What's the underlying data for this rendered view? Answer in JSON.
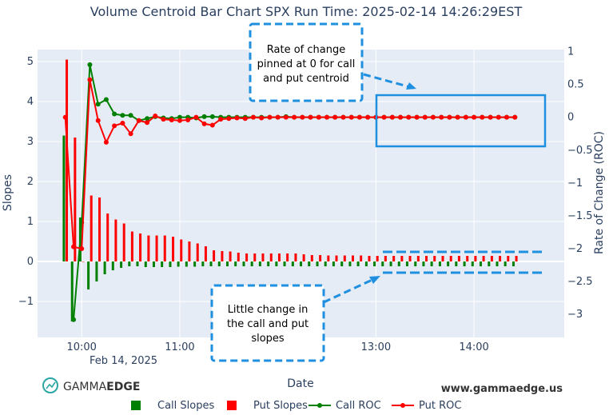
{
  "chart_data": {
    "type": "bar",
    "title": "Volume Centroid Bar Chart SPX Run Time: 2025-02-14 14:26:29EST",
    "xlabel": "Date",
    "ylabel": "Slopes",
    "y2label": "Rate of Change (ROC)",
    "x_ticks": [
      "10:00",
      "11:00",
      "13:00",
      "14:00"
    ],
    "x_tick_values": [
      10.0,
      11.0,
      13.0,
      14.0
    ],
    "x_date_label": "Feb 14, 2025",
    "xlim": [
      9.55,
      14.92
    ],
    "ylim": [
      -1.9,
      5.3
    ],
    "y2lim": [
      -3.35,
      1.03
    ],
    "y_ticks": [
      "5",
      "4",
      "3",
      "2",
      "1",
      "0",
      "−1"
    ],
    "y_tick_values": [
      5,
      4,
      3,
      2,
      1,
      0,
      -1
    ],
    "y2_ticks": [
      "1",
      "0.5",
      "0",
      "−0.5",
      "−1",
      "−1.5",
      "−2",
      "−2.5",
      "−3"
    ],
    "y2_tick_values": [
      1,
      0.5,
      0,
      -0.5,
      -1,
      -1.5,
      -2,
      -2.5,
      -3
    ],
    "x": [
      9.833,
      9.917,
      10.0,
      10.083,
      10.167,
      10.25,
      10.333,
      10.417,
      10.5,
      10.583,
      10.667,
      10.75,
      10.833,
      10.917,
      11.0,
      11.083,
      11.167,
      11.25,
      11.333,
      11.417,
      11.5,
      11.583,
      11.667,
      11.75,
      11.833,
      11.917,
      12.0,
      12.083,
      12.167,
      12.25,
      12.333,
      12.417,
      12.5,
      12.583,
      12.667,
      12.75,
      12.833,
      12.917,
      13.0,
      13.083,
      13.167,
      13.25,
      13.333,
      13.417,
      13.5,
      13.583,
      13.667,
      13.75,
      13.833,
      13.917,
      14.0,
      14.083,
      14.167,
      14.25,
      14.333,
      14.417
    ],
    "series": [
      {
        "name": "Call Slopes",
        "color": "#008000",
        "kind": "bar",
        "values": [
          3.15,
          -1.5,
          1.1,
          -0.7,
          -0.5,
          -0.32,
          -0.22,
          -0.16,
          -0.12,
          -0.12,
          -0.14,
          -0.14,
          -0.14,
          -0.14,
          -0.13,
          -0.13,
          -0.13,
          -0.12,
          -0.12,
          -0.12,
          -0.12,
          -0.12,
          -0.12,
          -0.12,
          -0.12,
          -0.12,
          -0.12,
          -0.12,
          -0.12,
          -0.12,
          -0.12,
          -0.12,
          -0.12,
          -0.12,
          -0.12,
          -0.12,
          -0.12,
          -0.12,
          -0.12,
          -0.12,
          -0.12,
          -0.12,
          -0.12,
          -0.12,
          -0.12,
          -0.12,
          -0.12,
          -0.12,
          -0.12,
          -0.12,
          -0.12,
          -0.12,
          -0.12,
          -0.12,
          -0.12,
          -0.12
        ]
      },
      {
        "name": "Put Slopes",
        "color": "#ff0000",
        "kind": "bar",
        "values": [
          5.05,
          3.1,
          0.0,
          1.65,
          1.6,
          1.2,
          1.05,
          0.95,
          0.75,
          0.7,
          0.65,
          0.65,
          0.65,
          0.62,
          0.55,
          0.5,
          0.45,
          0.38,
          0.28,
          0.26,
          0.25,
          0.22,
          0.2,
          0.2,
          0.2,
          0.2,
          0.2,
          0.2,
          0.2,
          0.18,
          0.16,
          0.16,
          0.15,
          0.15,
          0.15,
          0.15,
          0.15,
          0.14,
          0.14,
          0.14,
          0.14,
          0.14,
          0.14,
          0.14,
          0.14,
          0.14,
          0.14,
          0.14,
          0.14,
          0.14,
          0.14,
          0.14,
          0.14,
          0.14,
          0.14,
          0.14
        ]
      },
      {
        "name": "Call ROC",
        "color": "#008000",
        "kind": "line",
        "axis": "y2",
        "values": [
          null,
          -3.08,
          -1.6,
          0.8,
          0.2,
          0.27,
          0.05,
          0.03,
          0.03,
          -0.05,
          -0.02,
          0.01,
          -0.01,
          -0.02,
          0.0,
          0.0,
          -0.01,
          0.01,
          0.01,
          0.0,
          0.0,
          0.0,
          0.0,
          0.0,
          0.0,
          0.0,
          0.0,
          0.01,
          0.0,
          0.0,
          0.0,
          0.0,
          0.0,
          0.0,
          0.0,
          0.0,
          0.0,
          0.0,
          0.0,
          0.0,
          0.0,
          0.0,
          0.0,
          0.0,
          0.0,
          0.0,
          0.0,
          0.0,
          0.0,
          0.0,
          0.0,
          0.0,
          0.0,
          0.0,
          0.0,
          0.0
        ]
      },
      {
        "name": "Put ROC",
        "color": "#ff0000",
        "kind": "line",
        "axis": "y2",
        "values": [
          0.0,
          -1.97,
          -2.0,
          0.57,
          -0.05,
          -0.38,
          -0.13,
          -0.09,
          -0.25,
          -0.05,
          -0.08,
          0.02,
          -0.03,
          -0.04,
          -0.05,
          -0.04,
          0.0,
          -0.1,
          -0.12,
          -0.03,
          -0.02,
          -0.01,
          -0.02,
          0.0,
          -0.01,
          0.0,
          0.0,
          0.0,
          0.0,
          0.0,
          0.0,
          0.0,
          0.0,
          0.0,
          0.0,
          0.0,
          0.0,
          0.0,
          0.0,
          0.0,
          0.0,
          0.0,
          0.0,
          0.0,
          0.0,
          0.0,
          0.0,
          0.0,
          0.0,
          0.0,
          0.0,
          0.0,
          0.0,
          0.0,
          0.0,
          0.0
        ]
      }
    ],
    "legend_position": "bottom",
    "grid": true,
    "annotations": [
      {
        "text_lines": [
          "Rate of change",
          "pinned at 0 for call",
          "and put centroid"
        ]
      },
      {
        "text_lines": [
          "Little change in",
          "the call and put",
          "slopes"
        ]
      }
    ]
  },
  "branding": {
    "logo_prefix": "GAMMA",
    "logo_suffix": "EDGE",
    "website": "www.gammaedge.us"
  },
  "colors": {
    "plot_bg": "#e5ecf6",
    "call": "#008000",
    "put": "#ff0000",
    "annotation": "#1f8fe0",
    "axis_text": "#2a3f5f"
  }
}
